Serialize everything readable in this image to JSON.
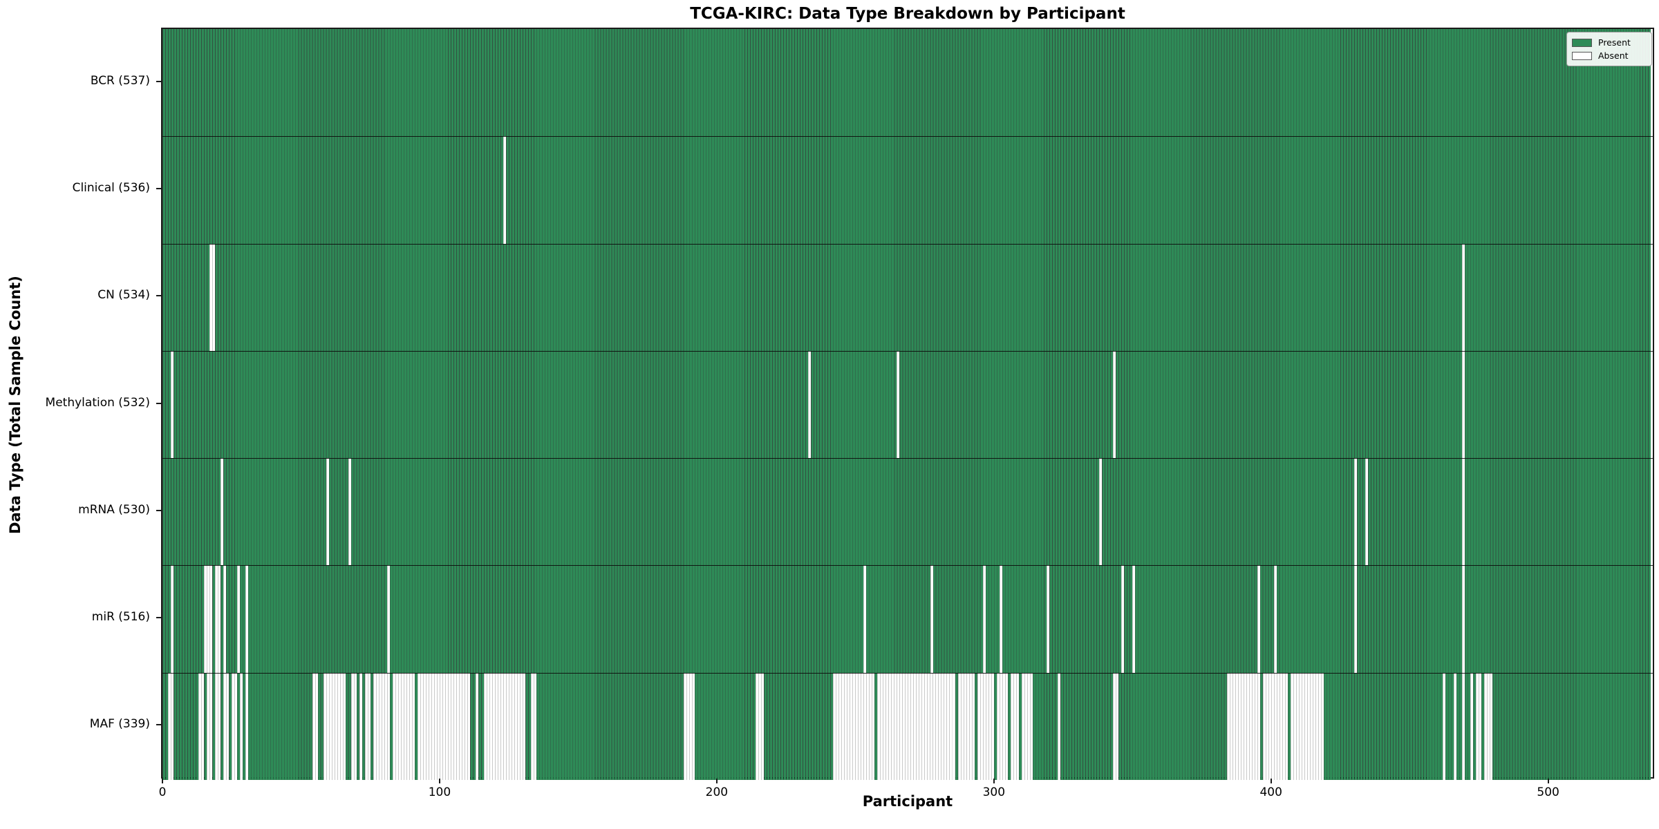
{
  "chart_data": {
    "type": "heatmap",
    "title": "TCGA-KIRC: Data Type Breakdown by Participant",
    "xlabel": "Participant",
    "ylabel": "Data Type (Total Sample Count)",
    "x_ticks": [
      0,
      100,
      200,
      300,
      400,
      500
    ],
    "n_participants": 537,
    "grid": false,
    "legend_position": "upper right",
    "legend": [
      {
        "label": "Present",
        "color": "#2e8b57"
      },
      {
        "label": "Absent",
        "color": "#ffffff"
      }
    ],
    "colors": {
      "present": "#2e8b57",
      "absent": "#ffffff",
      "bar_edge": "#0f3220",
      "plot_border": "#1a1a1a"
    },
    "rows": [
      {
        "label": "BCR (537)",
        "data_type": "BCR",
        "total_samples": 537,
        "absent_participants": []
      },
      {
        "label": "Clinical (536)",
        "data_type": "Clinical",
        "total_samples": 536,
        "absent_participants": [
          123
        ]
      },
      {
        "label": "CN (534)",
        "data_type": "CN",
        "total_samples": 534,
        "absent_participants": [
          [
            17,
            18
          ],
          469
        ]
      },
      {
        "label": "Methylation (532)",
        "data_type": "Methylation",
        "total_samples": 532,
        "absent_participants": [
          3,
          233,
          265,
          343,
          469
        ]
      },
      {
        "label": "mRNA (530)",
        "data_type": "mRNA",
        "total_samples": 530,
        "absent_participants": [
          21,
          59,
          67,
          338,
          430,
          434,
          469
        ]
      },
      {
        "label": "miR (516)",
        "data_type": "miR",
        "total_samples": 516,
        "absent_participants": [
          3,
          15,
          16,
          17,
          19,
          20,
          22,
          27,
          30,
          81,
          253,
          277,
          296,
          302,
          319,
          346,
          350,
          395,
          401,
          430,
          469
        ]
      },
      {
        "label": "MAF (339)",
        "data_type": "MAF",
        "total_samples": 339,
        "absent_participants": [
          [
            2,
            3
          ],
          [
            13,
            14
          ],
          [
            16,
            17
          ],
          [
            19,
            20
          ],
          [
            22,
            23
          ],
          [
            25,
            26
          ],
          28,
          30,
          [
            54,
            55
          ],
          [
            58,
            65
          ],
          [
            68,
            69
          ],
          71,
          [
            73,
            74
          ],
          [
            76,
            81
          ],
          [
            83,
            90
          ],
          [
            92,
            101
          ],
          [
            102,
            110
          ],
          113,
          [
            116,
            130
          ],
          [
            133,
            134
          ],
          [
            188,
            191
          ],
          [
            214,
            216
          ],
          [
            242,
            256
          ],
          [
            258,
            285
          ],
          [
            287,
            292
          ],
          [
            294,
            299
          ],
          [
            301,
            304
          ],
          [
            306,
            308
          ],
          [
            310,
            313
          ],
          323,
          [
            343,
            344
          ],
          [
            384,
            395
          ],
          [
            397,
            405
          ],
          [
            407,
            418
          ],
          462,
          466,
          469,
          472,
          [
            474,
            475
          ],
          [
            477,
            479
          ]
        ]
      }
    ]
  }
}
